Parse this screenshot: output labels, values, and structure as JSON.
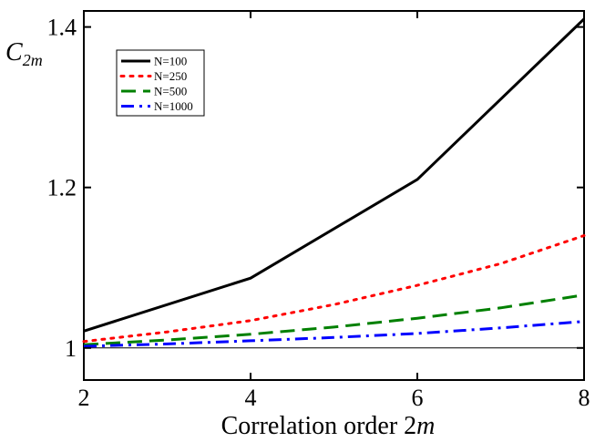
{
  "chart_data": {
    "type": "line",
    "xlabel_prefix": "Correlation order 2",
    "xlabel_var": "m",
    "ylabel_main": "C",
    "ylabel_sub": "2m",
    "xlim": [
      2,
      8
    ],
    "ylim": [
      0.96,
      1.42
    ],
    "x_ticks": [
      2,
      4,
      6,
      8
    ],
    "x_tick_labels": [
      "2",
      "4",
      "6",
      "8"
    ],
    "y_ticks": [
      1.0,
      1.2,
      1.4
    ],
    "y_tick_labels": [
      "1",
      "1.2",
      "1.4"
    ],
    "reference_line": 1.0,
    "legend_position": "top-left",
    "series": [
      {
        "name": "N=100",
        "color": "#000000",
        "dash": "solid",
        "x": [
          2,
          4,
          6,
          8
        ],
        "y": [
          1.021,
          1.087,
          1.21,
          1.41
        ]
      },
      {
        "name": "N=250",
        "color": "#ff0000",
        "dash": "dotted",
        "x": [
          2,
          3,
          4,
          5,
          6,
          7,
          8
        ],
        "y": [
          1.008,
          1.02,
          1.034,
          1.054,
          1.078,
          1.105,
          1.14
        ]
      },
      {
        "name": "N=500",
        "color": "#008000",
        "dash": "dashed",
        "x": [
          2,
          3,
          4,
          5,
          6,
          7,
          8
        ],
        "y": [
          1.004,
          1.01,
          1.017,
          1.026,
          1.037,
          1.05,
          1.066
        ]
      },
      {
        "name": "N=1000",
        "color": "#0000ff",
        "dash": "dashdot",
        "x": [
          2,
          3,
          4,
          5,
          6,
          7,
          8
        ],
        "y": [
          1.002,
          1.005,
          1.009,
          1.013,
          1.018,
          1.025,
          1.033
        ]
      }
    ]
  }
}
